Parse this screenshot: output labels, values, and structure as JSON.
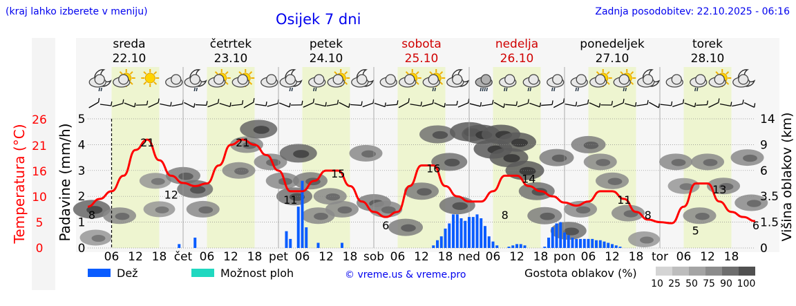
{
  "header": {
    "note": "(kraj lahko izberete v meniju)",
    "title": "Osijek 7 dni",
    "updated": "Zadnja posodobitev: 22.10.2025 - 06:16"
  },
  "days": [
    {
      "name": "sreda",
      "date": "22.10",
      "weekend": false
    },
    {
      "name": "četrtek",
      "date": "23.10",
      "weekend": false
    },
    {
      "name": "petek",
      "date": "24.10",
      "weekend": false
    },
    {
      "name": "sobota",
      "date": "25.10",
      "weekend": true
    },
    {
      "name": "nedelja",
      "date": "26.10",
      "weekend": true
    },
    {
      "name": "ponedeljek",
      "date": "27.10",
      "weekend": false
    },
    {
      "name": "torek",
      "date": "28.10",
      "weekend": false
    }
  ],
  "x_tick_labels": [
    "06",
    "12",
    "18",
    "čet",
    "06",
    "12",
    "18",
    "pet",
    "06",
    "12",
    "18",
    "sob",
    "06",
    "12",
    "18",
    "ned",
    "06",
    "12",
    "18",
    "pon",
    "06",
    "12",
    "18",
    "tor",
    "06",
    "12",
    "18"
  ],
  "weather_icons": [
    "night-cloud-drizzle",
    "sun-cloud",
    "sun",
    "cloud",
    "night-cloud-drizzle",
    "sun-cloud",
    "sun-cloud",
    "cloud",
    "night-cloud-drizzle",
    "cloud-drizzle",
    "sun-cloud",
    "night-cloud",
    "cloud",
    "sun-cloud",
    "sun-cloud-drizzle",
    "night-cloud",
    "cloud-rain",
    "cloud-drizzle",
    "cloud-drizzle",
    "cloud-drizzle",
    "cloud-drizzle",
    "sun-cloud",
    "sun-cloud-drizzle",
    "night-cloud",
    "cloud",
    "cloud-drizzle",
    "sun-cloud",
    "night-cloud"
  ],
  "colors": {
    "rain": "#0a5cff",
    "shower_possibility": "#20d8c0",
    "temperature": "#ff0000",
    "day_band": "#eef5d0",
    "weekend_text": "#d00000",
    "title": "#0000ee"
  },
  "chart_data": {
    "type": "line",
    "x_unit": "hours from 22.10 00:00",
    "x_range": [
      0,
      168
    ],
    "now_marker": 6,
    "temperature": {
      "label": "Temperatura (°C)",
      "ticks": [
        0,
        5,
        10,
        16,
        21,
        26
      ],
      "points": [
        [
          0,
          8
        ],
        [
          3,
          9.5
        ],
        [
          6,
          11
        ],
        [
          9,
          14
        ],
        [
          12,
          19
        ],
        [
          15,
          21
        ],
        [
          18,
          17
        ],
        [
          21,
          14
        ],
        [
          24,
          12.6
        ],
        [
          27,
          12
        ],
        [
          30,
          12.5
        ],
        [
          33,
          16
        ],
        [
          36,
          20
        ],
        [
          39,
          21
        ],
        [
          42,
          20
        ],
        [
          45,
          18
        ],
        [
          48,
          15
        ],
        [
          51,
          11
        ],
        [
          54,
          11
        ],
        [
          57,
          13
        ],
        [
          60,
          15
        ],
        [
          63,
          15
        ],
        [
          66,
          12
        ],
        [
          69,
          9
        ],
        [
          72,
          7
        ],
        [
          75,
          6
        ],
        [
          78,
          7
        ],
        [
          81,
          12
        ],
        [
          84,
          16
        ],
        [
          87,
          16
        ],
        [
          90,
          12
        ],
        [
          93,
          10
        ],
        [
          96,
          9
        ],
        [
          99,
          9
        ],
        [
          102,
          11
        ],
        [
          105,
          14
        ],
        [
          108,
          14
        ],
        [
          111,
          12
        ],
        [
          114,
          11
        ],
        [
          117,
          10
        ],
        [
          120,
          8.8
        ],
        [
          123,
          8.2
        ],
        [
          126,
          9
        ],
        [
          129,
          11
        ],
        [
          132,
          11
        ],
        [
          135,
          9.5
        ],
        [
          138,
          7
        ],
        [
          141,
          5.5
        ],
        [
          144,
          5
        ],
        [
          147,
          4.8
        ],
        [
          150,
          8
        ],
        [
          153,
          12.5
        ],
        [
          156,
          12.5
        ],
        [
          159,
          9
        ],
        [
          162,
          7
        ],
        [
          165,
          6
        ],
        [
          168,
          5.2
        ]
      ],
      "labels": [
        [
          0,
          8
        ],
        [
          15,
          21
        ],
        [
          39,
          21
        ],
        [
          21,
          12
        ],
        [
          51,
          11
        ],
        [
          63,
          15
        ],
        [
          75,
          6
        ],
        [
          87,
          16
        ],
        [
          111,
          14
        ],
        [
          105,
          8
        ],
        [
          135,
          11
        ],
        [
          141,
          8
        ],
        [
          153,
          5
        ],
        [
          159,
          13
        ],
        [
          168,
          6
        ]
      ]
    },
    "precipitation": {
      "label": "Padavine (mm/h)",
      "ticks": [
        0,
        1,
        2,
        3,
        4,
        5
      ],
      "bars": [
        [
          23,
          0.15
        ],
        [
          27,
          0.4
        ],
        [
          50,
          0.65
        ],
        [
          51,
          0.35
        ],
        [
          53,
          1.6
        ],
        [
          54,
          2.6
        ],
        [
          55,
          0.8
        ],
        [
          58,
          0.2
        ],
        [
          64,
          0.2
        ],
        [
          87,
          0.1
        ],
        [
          88,
          0.3
        ],
        [
          89,
          0.45
        ],
        [
          90,
          0.75
        ],
        [
          91,
          0.95
        ],
        [
          92,
          1.3
        ],
        [
          93,
          1.3
        ],
        [
          94,
          1.15
        ],
        [
          95,
          1.05
        ],
        [
          96,
          1.2
        ],
        [
          97,
          1.2
        ],
        [
          98,
          1.3
        ],
        [
          99,
          1.15
        ],
        [
          100,
          0.85
        ],
        [
          101,
          0.45
        ],
        [
          102,
          0.25
        ],
        [
          103,
          0.1
        ],
        [
          106,
          0.05
        ],
        [
          107,
          0.1
        ],
        [
          108,
          0.15
        ],
        [
          109,
          0.15
        ],
        [
          110,
          0.1
        ],
        [
          115,
          0.05
        ],
        [
          116,
          0.4
        ],
        [
          117,
          0.8
        ],
        [
          118,
          0.95
        ],
        [
          119,
          1.0
        ],
        [
          120,
          0.6
        ],
        [
          121,
          0.5
        ],
        [
          122,
          0.4
        ],
        [
          123,
          0.35
        ],
        [
          124,
          0.35
        ],
        [
          125,
          0.35
        ],
        [
          126,
          0.35
        ],
        [
          127,
          0.35
        ],
        [
          128,
          0.3
        ],
        [
          129,
          0.3
        ],
        [
          130,
          0.25
        ],
        [
          131,
          0.2
        ],
        [
          132,
          0.15
        ],
        [
          133,
          0.1
        ],
        [
          134,
          0.05
        ]
      ]
    },
    "cloud_height": {
      "label": "Višina oblakov (km)",
      "ticks": [
        0,
        1.5,
        3.5,
        6.0,
        9.0,
        14
      ],
      "blobs": [
        [
          1,
          2.5,
          0.9
        ],
        [
          2,
          0.6,
          0.5
        ],
        [
          8,
          2,
          0.6
        ],
        [
          17,
          5,
          0.5
        ],
        [
          18,
          2.5,
          0.5
        ],
        [
          24,
          5.5,
          0.7
        ],
        [
          27,
          4.2,
          0.8
        ],
        [
          29,
          2.5,
          0.6
        ],
        [
          38,
          6,
          0.6
        ],
        [
          40,
          9,
          0.6
        ],
        [
          43,
          12,
          0.9
        ],
        [
          46,
          7,
          0.6
        ],
        [
          49,
          5,
          0.6
        ],
        [
          52,
          3.5,
          0.8
        ],
        [
          53,
          8,
          0.9
        ],
        [
          56,
          5,
          0.7
        ],
        [
          58,
          2,
          0.6
        ],
        [
          61,
          3.5,
          0.6
        ],
        [
          64,
          2.5,
          0.6
        ],
        [
          70,
          8,
          0.6
        ],
        [
          72,
          3,
          0.7
        ],
        [
          75,
          2.5,
          0.6
        ],
        [
          80,
          1.2,
          0.7
        ],
        [
          84,
          4,
          0.7
        ],
        [
          88,
          11,
          0.8
        ],
        [
          91,
          7,
          0.8
        ],
        [
          93,
          2.8,
          0.8
        ],
        [
          96,
          11.5,
          1
        ],
        [
          99,
          11,
          1
        ],
        [
          102,
          8.5,
          1
        ],
        [
          104,
          11,
          1
        ],
        [
          106,
          7.5,
          1
        ],
        [
          108,
          9.5,
          1
        ],
        [
          110,
          6,
          1
        ],
        [
          113,
          4,
          0.8
        ],
        [
          115,
          2,
          0.7
        ],
        [
          118,
          7.5,
          0.7
        ],
        [
          121,
          1,
          0.8
        ],
        [
          124,
          2.5,
          0.6
        ],
        [
          126,
          9,
          0.7
        ],
        [
          129,
          7,
          0.6
        ],
        [
          132,
          5,
          0.6
        ],
        [
          136,
          2.2,
          0.6
        ],
        [
          140,
          0.5,
          0.5
        ],
        [
          148,
          7,
          0.6
        ],
        [
          150,
          4.5,
          0.5
        ],
        [
          154,
          2,
          0.6
        ],
        [
          156,
          7,
          0.6
        ],
        [
          160,
          4.5,
          0.6
        ],
        [
          166,
          7.5,
          0.6
        ],
        [
          167,
          3,
          0.6
        ]
      ]
    }
  },
  "legend": {
    "rain_label": "Dež",
    "shower_label": "Možnost ploh",
    "credit": "© vreme.us & vreme.pro",
    "density_title": "Gostota oblakov (%)",
    "density_scale": [
      "10",
      "25",
      "50",
      "75",
      "90",
      "100"
    ]
  }
}
